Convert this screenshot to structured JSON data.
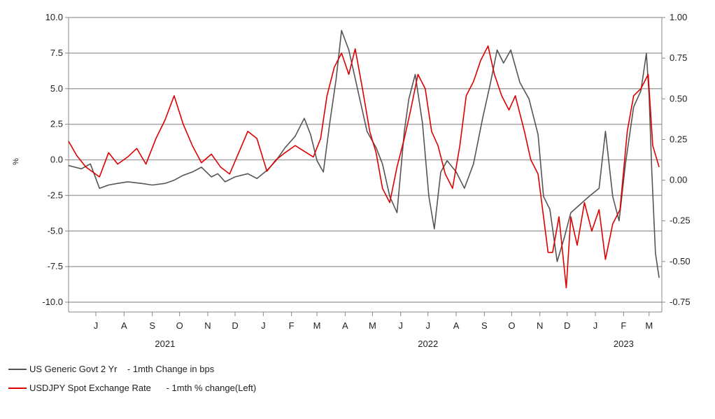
{
  "chart_data": {
    "type": "line",
    "y_unit": "%",
    "left_axis": {
      "min": -10,
      "max": 10,
      "ticks": [
        "10.0",
        "7.5",
        "5.0",
        "2.5",
        "0.0",
        "-2.5",
        "-5.0",
        "-7.5",
        "-10.0"
      ]
    },
    "right_axis": {
      "min": -0.75,
      "max": 1.0,
      "ticks": [
        "1.00",
        "0.75",
        "0.50",
        "0.25",
        "0.00",
        "-0.25",
        "-0.50",
        "-0.75"
      ]
    },
    "x_range": [
      "2021-06-01",
      "2023-03-15"
    ],
    "months": [
      "J",
      "A",
      "S",
      "O",
      "N",
      "D",
      "J",
      "F",
      "M",
      "A",
      "M",
      "J",
      "J",
      "A",
      "S",
      "O",
      "N",
      "D",
      "J",
      "F",
      "M"
    ],
    "month_dates": [
      "2021-07-01",
      "2021-08-01",
      "2021-09-01",
      "2021-10-01",
      "2021-11-01",
      "2021-12-01",
      "2022-01-01",
      "2022-02-01",
      "2022-03-01",
      "2022-04-01",
      "2022-05-01",
      "2022-06-01",
      "2022-07-01",
      "2022-08-01",
      "2022-09-01",
      "2022-10-01",
      "2022-11-01",
      "2022-12-01",
      "2023-01-01",
      "2023-02-01",
      "2023-03-01"
    ],
    "years": [
      {
        "label": "2021",
        "date": "2021-09-15"
      },
      {
        "label": "2022",
        "date": "2022-07-01"
      },
      {
        "label": "2023",
        "date": "2023-02-01"
      }
    ],
    "grid": "horizontal",
    "legend_position": "bottom-left",
    "series": [
      {
        "name": "US Generic Govt 2 Yr    - 1mth Change in bps",
        "axis": "right",
        "color": "#555555",
        "x": [
          "2021-06-01",
          "2021-06-15",
          "2021-06-25",
          "2021-07-05",
          "2021-07-15",
          "2021-07-25",
          "2021-08-05",
          "2021-08-20",
          "2021-09-01",
          "2021-09-15",
          "2021-09-25",
          "2021-10-05",
          "2021-10-15",
          "2021-10-25",
          "2021-11-05",
          "2021-11-12",
          "2021-11-20",
          "2021-12-01",
          "2021-12-15",
          "2021-12-25",
          "2022-01-05",
          "2022-01-15",
          "2022-01-25",
          "2022-02-05",
          "2022-02-15",
          "2022-02-22",
          "2022-03-01",
          "2022-03-08",
          "2022-03-15",
          "2022-03-22",
          "2022-03-28",
          "2022-04-05",
          "2022-04-15",
          "2022-04-25",
          "2022-05-05",
          "2022-05-12",
          "2022-05-20",
          "2022-05-28",
          "2022-06-05",
          "2022-06-10",
          "2022-06-17",
          "2022-06-25",
          "2022-07-02",
          "2022-07-08",
          "2022-07-15",
          "2022-07-22",
          "2022-08-01",
          "2022-08-10",
          "2022-08-20",
          "2022-08-30",
          "2022-09-07",
          "2022-09-15",
          "2022-09-22",
          "2022-09-30",
          "2022-10-10",
          "2022-10-20",
          "2022-10-30",
          "2022-11-05",
          "2022-11-12",
          "2022-11-20",
          "2022-11-28",
          "2022-12-05",
          "2022-12-15",
          "2022-12-25",
          "2023-01-05",
          "2023-01-12",
          "2023-01-20",
          "2023-01-27",
          "2023-02-03",
          "2023-02-12",
          "2023-02-20",
          "2023-02-26",
          "2023-03-01",
          "2023-03-04",
          "2023-03-08",
          "2023-03-12"
        ],
        "values": [
          0.09,
          0.07,
          0.1,
          -0.05,
          -0.03,
          -0.02,
          -0.01,
          -0.02,
          -0.03,
          -0.02,
          0.0,
          0.03,
          0.05,
          0.08,
          0.02,
          0.04,
          -0.01,
          0.02,
          0.04,
          0.01,
          0.06,
          0.12,
          0.2,
          0.27,
          0.38,
          0.28,
          0.12,
          0.05,
          0.35,
          0.62,
          0.92,
          0.8,
          0.55,
          0.3,
          0.2,
          0.1,
          -0.1,
          -0.2,
          0.3,
          0.5,
          0.65,
          0.35,
          -0.1,
          -0.3,
          0.05,
          0.12,
          0.05,
          -0.05,
          0.1,
          0.38,
          0.58,
          0.8,
          0.72,
          0.8,
          0.6,
          0.5,
          0.28,
          -0.1,
          -0.18,
          -0.5,
          -0.35,
          -0.2,
          -0.15,
          -0.1,
          -0.05,
          0.3,
          -0.1,
          -0.25,
          0.1,
          0.45,
          0.55,
          0.78,
          0.52,
          0.05,
          -0.45,
          -0.6
        ]
      },
      {
        "name": "USDJPY Spot Exchange Rate      - 1mth % change(Left)",
        "axis": "left",
        "color": "#dd0000",
        "x": [
          "2021-06-01",
          "2021-06-10",
          "2021-06-20",
          "2021-07-05",
          "2021-07-15",
          "2021-07-25",
          "2021-08-05",
          "2021-08-15",
          "2021-08-25",
          "2021-09-05",
          "2021-09-15",
          "2021-09-25",
          "2021-10-05",
          "2021-10-15",
          "2021-10-25",
          "2021-11-05",
          "2021-11-15",
          "2021-11-25",
          "2021-12-05",
          "2021-12-15",
          "2021-12-25",
          "2022-01-05",
          "2022-01-15",
          "2022-01-25",
          "2022-02-05",
          "2022-02-15",
          "2022-02-25",
          "2022-03-05",
          "2022-03-12",
          "2022-03-20",
          "2022-03-28",
          "2022-04-05",
          "2022-04-12",
          "2022-04-20",
          "2022-04-28",
          "2022-05-05",
          "2022-05-12",
          "2022-05-20",
          "2022-05-28",
          "2022-06-05",
          "2022-06-12",
          "2022-06-20",
          "2022-06-28",
          "2022-07-05",
          "2022-07-12",
          "2022-07-20",
          "2022-07-28",
          "2022-08-05",
          "2022-08-12",
          "2022-08-20",
          "2022-08-28",
          "2022-09-05",
          "2022-09-12",
          "2022-09-20",
          "2022-09-28",
          "2022-10-05",
          "2022-10-15",
          "2022-10-22",
          "2022-10-30",
          "2022-11-05",
          "2022-11-10",
          "2022-11-15",
          "2022-11-22",
          "2022-11-30",
          "2022-12-05",
          "2022-12-12",
          "2022-12-20",
          "2022-12-28",
          "2023-01-05",
          "2023-01-12",
          "2023-01-20",
          "2023-01-28",
          "2023-02-05",
          "2023-02-12",
          "2023-02-20",
          "2023-02-28",
          "2023-03-05",
          "2023-03-12"
        ],
        "values": [
          1.3,
          0.3,
          -0.5,
          -1.2,
          0.5,
          -0.3,
          0.2,
          0.8,
          -0.3,
          1.5,
          2.8,
          4.5,
          2.5,
          1.0,
          -0.2,
          0.4,
          -0.5,
          -1.0,
          0.5,
          2.0,
          1.5,
          -0.8,
          0.0,
          0.5,
          1.0,
          0.6,
          0.2,
          1.5,
          4.5,
          6.5,
          7.5,
          6.0,
          7.8,
          5.0,
          2.0,
          0.5,
          -2.0,
          -3.0,
          -0.5,
          1.5,
          3.5,
          6.0,
          5.0,
          2.0,
          1.0,
          -1.0,
          -2.0,
          1.0,
          4.5,
          5.5,
          7.0,
          8.0,
          6.0,
          4.5,
          3.5,
          4.5,
          2.0,
          0.0,
          -1.0,
          -4.0,
          -6.5,
          -6.5,
          -4.0,
          -9.0,
          -4.0,
          -6.0,
          -3.0,
          -5.0,
          -3.5,
          -7.0,
          -4.5,
          -3.5,
          2.0,
          4.5,
          5.0,
          6.0,
          1.0,
          -0.5
        ]
      }
    ]
  }
}
